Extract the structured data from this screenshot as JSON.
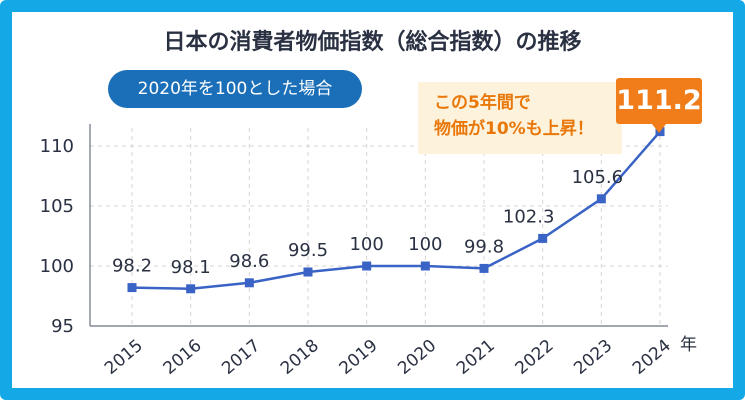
{
  "chart_data": {
    "type": "line",
    "title": "日本の消費者物価指数（総合指数）の推移",
    "subtitle": "2020年を100とした場合",
    "xlabel": "年",
    "ylabel": "",
    "categories": [
      "2015",
      "2016",
      "2017",
      "2018",
      "2019",
      "2020",
      "2021",
      "2022",
      "2023",
      "2024"
    ],
    "series": [
      {
        "values": [
          98.2,
          98.1,
          98.6,
          99.5,
          100,
          100,
          99.8,
          102.3,
          105.6,
          111.2
        ],
        "color": "#3a63c6"
      }
    ],
    "data_labels": [
      "98.2",
      "98.1",
      "98.6",
      "99.5",
      "100",
      "100",
      "99.8",
      "102.3",
      "105.6",
      "111.2"
    ],
    "ylim": [
      95,
      111.5
    ],
    "yticks": [
      95,
      100,
      105,
      110
    ],
    "grid": true,
    "annotation": {
      "line1": "この5年間で",
      "line2": "物価が10%も上昇！",
      "highlight_value": "111.2"
    }
  },
  "colors": {
    "frame": "#14a8e6",
    "pill": "#1b6fb8",
    "line": "#3a63c6",
    "highlight": "#f07d1a",
    "callout_bg": "#fdf3dc",
    "callout_text": "#e9770a",
    "grid": "#d6d6d6",
    "text": "#2a3142"
  }
}
